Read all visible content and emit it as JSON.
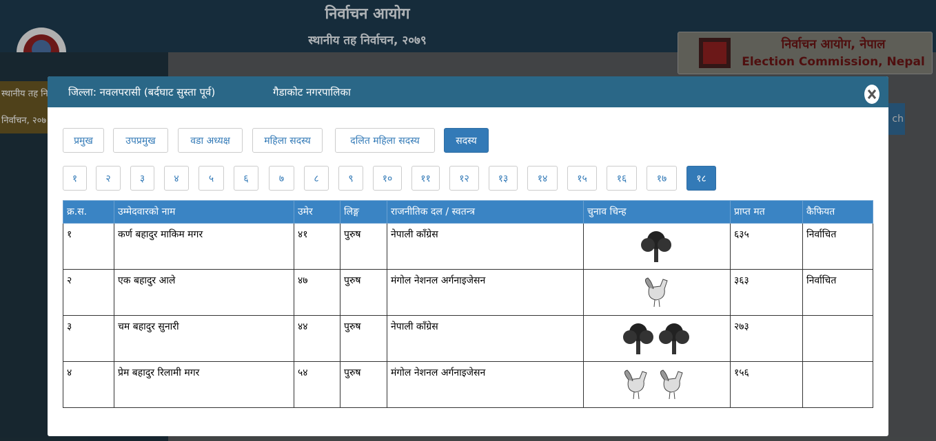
{
  "page": {
    "title": "निर्वाचन आयोग",
    "subtitle": "स्थानीय तह निर्वाचन, २०७९",
    "logo_np": "निर्वाचन आयोग, नेपाल",
    "logo_en": "Election Commission, Nepal",
    "side": [
      "स्थानीय तह नि",
      "निर्वाचन, २०७"
    ],
    "search": "ch"
  },
  "modal": {
    "district": "जिल्ला: नवलपरासी (बर्दघाट सुस्ता पूर्व)",
    "municipality": "गैडाकोट नगरपालिका",
    "tabs": [
      "प्रमुख",
      "उपप्रमुख",
      "वडा अध्यक्ष",
      "महिला सदस्य",
      "दलित महिला सदस्य",
      "सदस्य"
    ],
    "active_tab": 5,
    "wards": [
      "१",
      "२",
      "३",
      "४",
      "५",
      "६",
      "७",
      "८",
      "९",
      "१०",
      "११",
      "१२",
      "१३",
      "१४",
      "१५",
      "१६",
      "१७",
      "१८"
    ],
    "active_ward": 17,
    "table": {
      "headers": [
        "क्र.स.",
        "उम्मेदवारको नाम",
        "उमेर",
        "लिङ्ग",
        "राजनीतिक दल / स्वतन्त्र",
        "चुनाव चिन्ह",
        "प्राप्त मत",
        "कैफियत"
      ],
      "rows": [
        [
          "१",
          "कर्ण बहादुर माकिम मगर",
          "४१",
          "पुरुष",
          "नेपाली काँग्रेस",
          "६३५",
          "निर्वाचित"
        ],
        [
          "२",
          "एक बहादुर आले",
          "४७",
          "पुरुष",
          "मंगोल नेशनल अर्गनाइजेसन",
          "३६३",
          "निर्वाचित"
        ],
        [
          "३",
          "चम बहादुर सुनारी",
          "४४",
          "पुरुष",
          "नेपाली काँग्रेस",
          "२७३",
          ""
        ],
        [
          "४",
          "प्रेम बहादुर रिलामी मगर",
          "५४",
          "पुरुष",
          "मंगोल नेशनल अर्गनाइजेसन",
          "१५६",
          ""
        ]
      ]
    }
  }
}
